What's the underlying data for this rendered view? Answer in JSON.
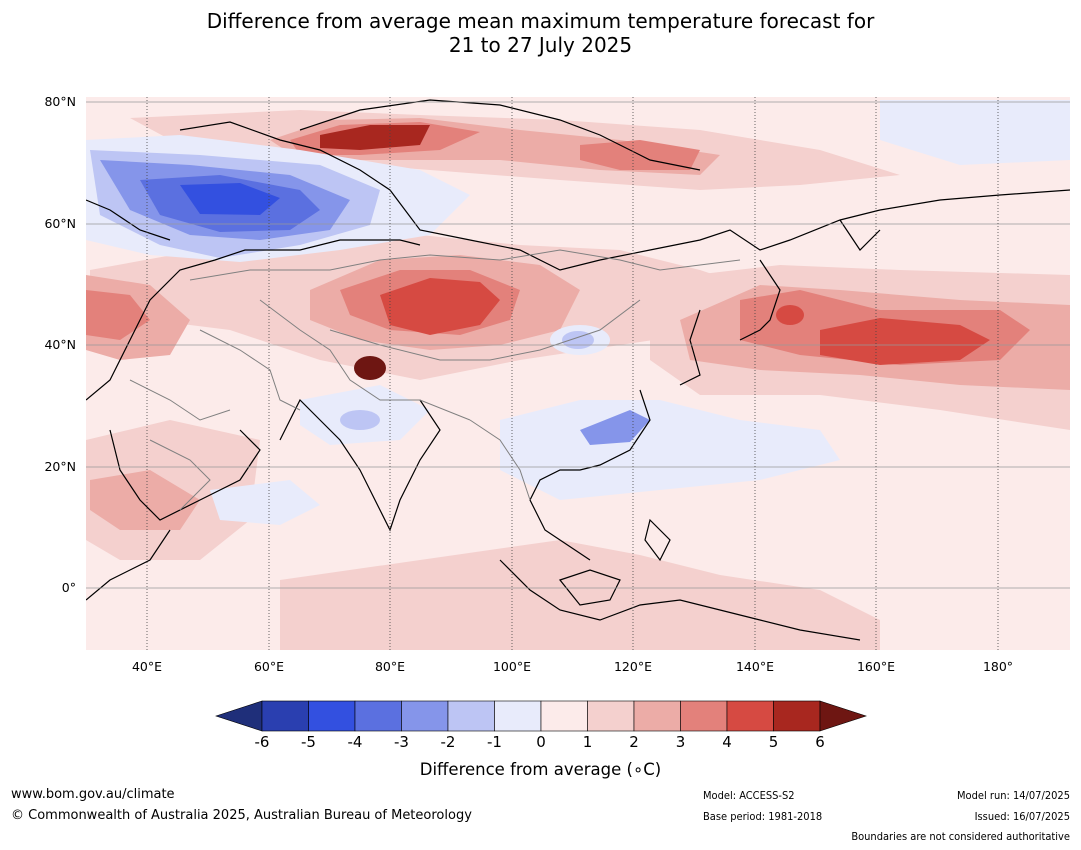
{
  "title": {
    "line1": "Difference from average mean maximum temperature forecast for",
    "line2": "21 to 27 July 2025"
  },
  "map": {
    "lat_labels": [
      "80°N",
      "60°N",
      "40°N",
      "20°N",
      "0°"
    ],
    "lon_labels": [
      "40°E",
      "60°E",
      "80°E",
      "100°E",
      "120°E",
      "140°E",
      "160°E",
      "180°"
    ]
  },
  "colorbar": {
    "ticks": [
      "-6",
      "-5",
      "-4",
      "-3",
      "-2",
      "-1",
      "0",
      "1",
      "2",
      "3",
      "4",
      "5",
      "6"
    ],
    "title": "Difference from average (∘C)",
    "colors": [
      "#1f2f7a",
      "#2a3fb0",
      "#3350e0",
      "#5b70e0",
      "#8595ea",
      "#bdc5f4",
      "#e8ebfb",
      "#fcebea",
      "#f4d0ce",
      "#ecaca7",
      "#e3817b",
      "#d64a42",
      "#a8271f",
      "#6e1612"
    ]
  },
  "footer": {
    "website": "www.bom.gov.au/climate",
    "copyright": "© Commonwealth of Australia 2025, Australian Bureau of Meteorology",
    "model": "Model: ACCESS-S2",
    "base_period": "Base period: 1981-2018",
    "model_run": "Model run: 14/07/2025",
    "issued": "Issued: 16/07/2025",
    "disclaimer": "Boundaries are not considered authoritative"
  }
}
